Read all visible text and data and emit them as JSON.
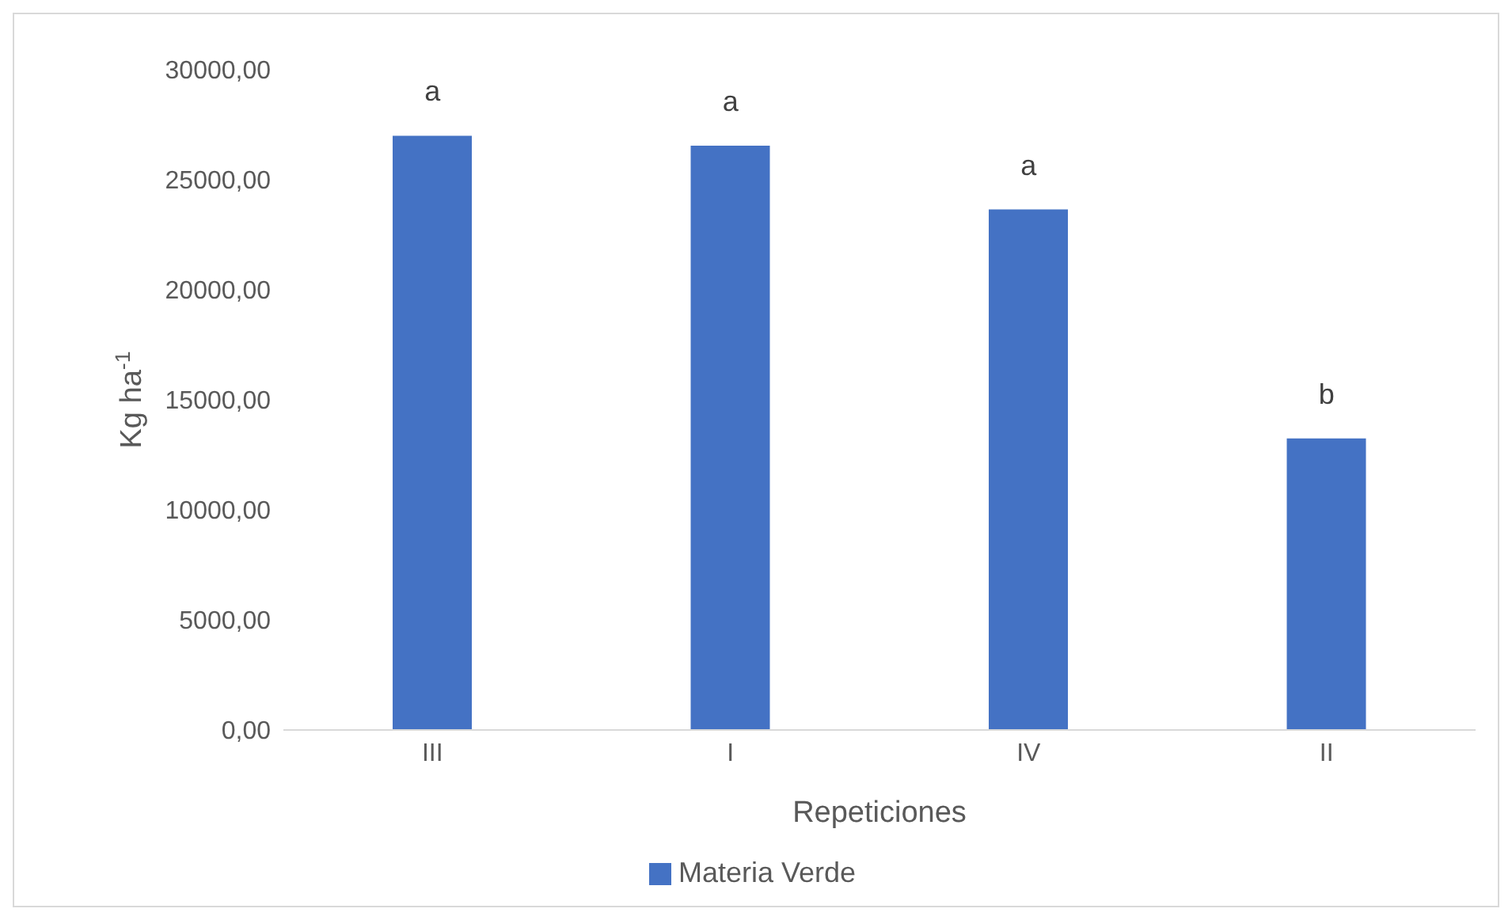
{
  "chart_data": {
    "type": "bar",
    "xlabel": "Repeticiones",
    "ylabel": "Kg ha$^{-1}$",
    "categories": [
      "III",
      "I",
      "IV",
      "II"
    ],
    "series": [
      {
        "name": "Materia Verde",
        "color": "#4472c4",
        "values": [
          27000,
          26550,
          23650,
          13250
        ]
      }
    ],
    "ylim": [
      0,
      30000
    ],
    "yticks": [
      {
        "value": 0,
        "label": "0,00"
      },
      {
        "value": 5000,
        "label": "5000,00"
      },
      {
        "value": 10000,
        "label": "10000,00"
      },
      {
        "value": 15000,
        "label": "15000,00"
      },
      {
        "value": 20000,
        "label": "20000,00"
      },
      {
        "value": 25000,
        "label": "25000,00"
      },
      {
        "value": 30000,
        "label": "30000,00"
      }
    ],
    "annotations": [
      {
        "text": "a",
        "x": "III",
        "y": 27000
      },
      {
        "text": "a",
        "x": "I",
        "y": 26550
      },
      {
        "text": "a",
        "x": "IV",
        "y": 23650
      },
      {
        "text": "b",
        "x": "II",
        "y": 13250
      }
    ],
    "grid": false,
    "legend": "bottom"
  }
}
